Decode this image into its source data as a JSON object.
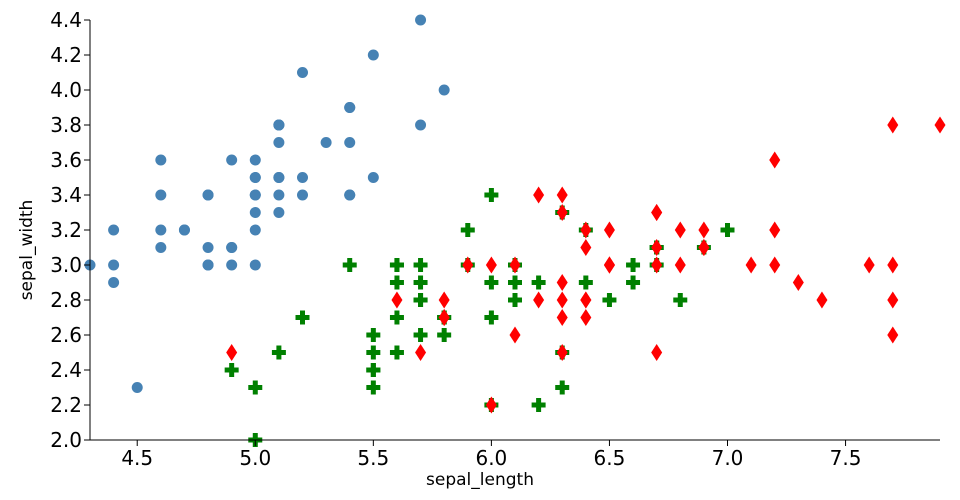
{
  "chart_data": {
    "type": "scatter",
    "xlabel": "sepal_length",
    "ylabel": "sepal_width",
    "xlim": [
      4.3,
      7.9
    ],
    "ylim": [
      2.0,
      4.4
    ],
    "x_ticks": [
      "4.5",
      "5.0",
      "5.5",
      "6.0",
      "6.5",
      "7.0",
      "7.5"
    ],
    "y_ticks": [
      "2.0",
      "2.2",
      "2.4",
      "2.6",
      "2.8",
      "3.0",
      "3.2",
      "3.4",
      "3.6",
      "3.8",
      "4.0",
      "4.2",
      "4.4"
    ],
    "grid": false,
    "legend": "none",
    "series": [
      {
        "marker": "circle",
        "color": "#4682b4",
        "points": [
          [
            5.1,
            3.5
          ],
          [
            4.9,
            3.0
          ],
          [
            4.7,
            3.2
          ],
          [
            4.6,
            3.1
          ],
          [
            5.0,
            3.6
          ],
          [
            5.4,
            3.9
          ],
          [
            4.6,
            3.4
          ],
          [
            5.0,
            3.4
          ],
          [
            4.4,
            2.9
          ],
          [
            4.9,
            3.1
          ],
          [
            5.4,
            3.7
          ],
          [
            4.8,
            3.4
          ],
          [
            4.8,
            3.0
          ],
          [
            4.3,
            3.0
          ],
          [
            5.8,
            4.0
          ],
          [
            5.7,
            4.4
          ],
          [
            5.4,
            3.9
          ],
          [
            5.1,
            3.5
          ],
          [
            5.7,
            3.8
          ],
          [
            5.1,
            3.8
          ],
          [
            5.4,
            3.4
          ],
          [
            5.1,
            3.7
          ],
          [
            4.6,
            3.6
          ],
          [
            5.1,
            3.3
          ],
          [
            4.8,
            3.4
          ],
          [
            5.0,
            3.0
          ],
          [
            5.0,
            3.4
          ],
          [
            5.2,
            3.5
          ],
          [
            5.2,
            3.4
          ],
          [
            4.7,
            3.2
          ],
          [
            4.8,
            3.1
          ],
          [
            5.4,
            3.4
          ],
          [
            5.2,
            4.1
          ],
          [
            5.5,
            4.2
          ],
          [
            4.9,
            3.1
          ],
          [
            5.0,
            3.2
          ],
          [
            5.5,
            3.5
          ],
          [
            4.9,
            3.6
          ],
          [
            4.4,
            3.0
          ],
          [
            5.1,
            3.4
          ],
          [
            5.0,
            3.5
          ],
          [
            4.5,
            2.3
          ],
          [
            4.4,
            3.2
          ],
          [
            5.0,
            3.5
          ],
          [
            5.1,
            3.8
          ],
          [
            4.8,
            3.0
          ],
          [
            5.1,
            3.8
          ],
          [
            4.6,
            3.2
          ],
          [
            5.3,
            3.7
          ],
          [
            5.0,
            3.3
          ]
        ]
      },
      {
        "marker": "plus",
        "color": "#008000",
        "points": [
          [
            7.0,
            3.2
          ],
          [
            6.4,
            3.2
          ],
          [
            6.9,
            3.1
          ],
          [
            5.5,
            2.3
          ],
          [
            6.5,
            2.8
          ],
          [
            5.7,
            2.8
          ],
          [
            6.3,
            3.3
          ],
          [
            4.9,
            2.4
          ],
          [
            6.6,
            2.9
          ],
          [
            5.2,
            2.7
          ],
          [
            5.0,
            2.0
          ],
          [
            5.9,
            3.0
          ],
          [
            6.0,
            2.2
          ],
          [
            6.1,
            2.9
          ],
          [
            5.6,
            2.9
          ],
          [
            6.7,
            3.1
          ],
          [
            5.6,
            3.0
          ],
          [
            5.8,
            2.7
          ],
          [
            6.2,
            2.2
          ],
          [
            5.6,
            2.5
          ],
          [
            5.9,
            3.2
          ],
          [
            6.1,
            2.8
          ],
          [
            6.3,
            2.5
          ],
          [
            6.1,
            2.8
          ],
          [
            6.4,
            2.9
          ],
          [
            6.6,
            3.0
          ],
          [
            6.8,
            2.8
          ],
          [
            6.7,
            3.0
          ],
          [
            6.0,
            2.9
          ],
          [
            5.7,
            2.6
          ],
          [
            5.5,
            2.4
          ],
          [
            5.5,
            2.4
          ],
          [
            5.8,
            2.7
          ],
          [
            6.0,
            2.7
          ],
          [
            5.4,
            3.0
          ],
          [
            6.0,
            3.4
          ],
          [
            6.7,
            3.1
          ],
          [
            6.3,
            2.3
          ],
          [
            5.6,
            3.0
          ],
          [
            5.5,
            2.5
          ],
          [
            5.5,
            2.6
          ],
          [
            6.1,
            3.0
          ],
          [
            5.8,
            2.6
          ],
          [
            5.0,
            2.3
          ],
          [
            5.6,
            2.7
          ],
          [
            5.7,
            3.0
          ],
          [
            5.7,
            2.9
          ],
          [
            6.2,
            2.9
          ],
          [
            5.1,
            2.5
          ],
          [
            5.7,
            2.8
          ]
        ]
      },
      {
        "marker": "diamond",
        "color": "#ff0000",
        "points": [
          [
            6.3,
            3.3
          ],
          [
            5.8,
            2.7
          ],
          [
            7.1,
            3.0
          ],
          [
            6.3,
            2.9
          ],
          [
            6.5,
            3.0
          ],
          [
            7.6,
            3.0
          ],
          [
            4.9,
            2.5
          ],
          [
            7.3,
            2.9
          ],
          [
            6.7,
            2.5
          ],
          [
            7.2,
            3.6
          ],
          [
            6.5,
            3.2
          ],
          [
            6.4,
            2.7
          ],
          [
            6.8,
            3.0
          ],
          [
            5.7,
            2.5
          ],
          [
            5.8,
            2.8
          ],
          [
            6.4,
            3.2
          ],
          [
            6.5,
            3.0
          ],
          [
            7.7,
            3.8
          ],
          [
            7.7,
            2.6
          ],
          [
            6.0,
            2.2
          ],
          [
            6.9,
            3.2
          ],
          [
            5.6,
            2.8
          ],
          [
            7.7,
            2.8
          ],
          [
            6.3,
            2.7
          ],
          [
            6.7,
            3.3
          ],
          [
            7.2,
            3.2
          ],
          [
            6.2,
            2.8
          ],
          [
            6.1,
            3.0
          ],
          [
            6.4,
            2.8
          ],
          [
            7.2,
            3.0
          ],
          [
            7.4,
            2.8
          ],
          [
            7.9,
            3.8
          ],
          [
            6.4,
            2.8
          ],
          [
            6.3,
            2.8
          ],
          [
            6.1,
            2.6
          ],
          [
            7.7,
            3.0
          ],
          [
            6.3,
            3.4
          ],
          [
            6.4,
            3.1
          ],
          [
            6.0,
            3.0
          ],
          [
            6.9,
            3.1
          ],
          [
            6.7,
            3.1
          ],
          [
            6.9,
            3.1
          ],
          [
            5.8,
            2.7
          ],
          [
            6.8,
            3.2
          ],
          [
            6.7,
            3.3
          ],
          [
            6.7,
            3.0
          ],
          [
            6.3,
            2.5
          ],
          [
            6.5,
            3.0
          ],
          [
            6.2,
            3.4
          ],
          [
            5.9,
            3.0
          ]
        ]
      }
    ]
  }
}
